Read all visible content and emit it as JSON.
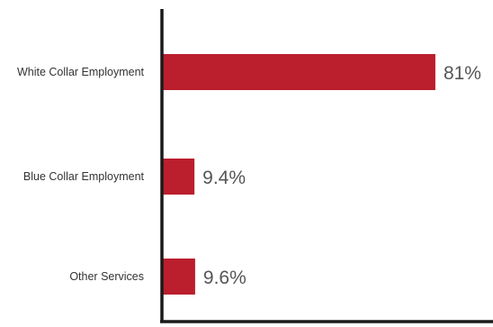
{
  "chart_data": {
    "type": "bar",
    "orientation": "horizontal",
    "categories": [
      "White Collar Employment",
      "Blue Collar Employment",
      "Other Services"
    ],
    "values": [
      81,
      9.4,
      9.6
    ],
    "value_labels": [
      "81%",
      "9.4%",
      "9.6%"
    ],
    "unit": "%",
    "xlim": [
      0,
      100
    ],
    "grid": false,
    "legend": "none",
    "bar_color": "#bb1e2d",
    "axis_color": "#1a1a1a"
  }
}
